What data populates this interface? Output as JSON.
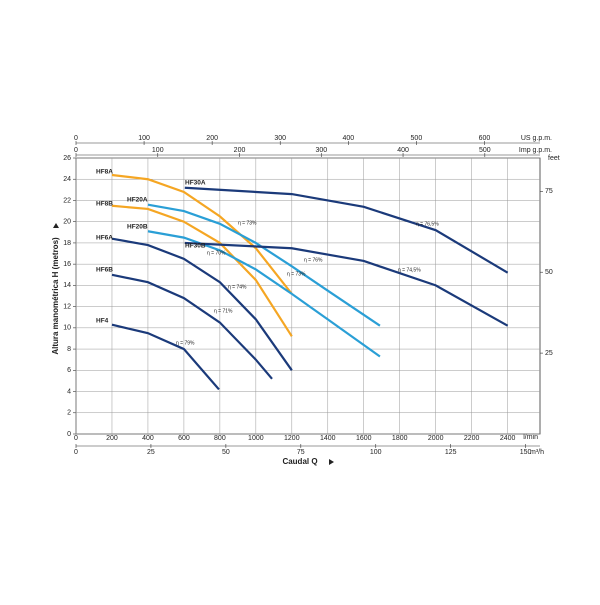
{
  "chart_data": {
    "type": "line",
    "xlabel": "Caudal Q",
    "xunit": "l/min",
    "xlim": [
      0,
      2580
    ],
    "xticks": [
      0,
      200,
      400,
      600,
      800,
      1000,
      1200,
      1400,
      1600,
      1800,
      2000,
      2200,
      2400
    ],
    "ylabel": "Altura manométrica H (metros)",
    "ylim": [
      0,
      26
    ],
    "yticks": [
      0,
      2,
      4,
      6,
      8,
      10,
      12,
      14,
      16,
      18,
      20,
      22,
      24,
      26
    ],
    "y2label": "feet",
    "y2lim": [
      0,
      85.3
    ],
    "y2ticks": [
      25,
      50,
      75
    ],
    "top_axes": [
      {
        "label": "US g.p.m.",
        "xlim": [
          0,
          681.6
        ],
        "xticks": [
          0,
          100,
          200,
          300,
          400,
          500,
          600
        ]
      },
      {
        "label": "Imp g.p.m.",
        "xlim": [
          0,
          567.5
        ],
        "xticks": [
          0,
          100,
          200,
          300,
          400,
          500
        ]
      }
    ],
    "bottom_axis2": {
      "label": "m³/h",
      "xlim": [
        0,
        154.8
      ],
      "xticks": [
        0,
        25,
        50,
        75,
        100,
        125,
        150
      ]
    },
    "grid": true,
    "series": [
      {
        "name": "HF8A",
        "color": "#f5a623",
        "x": [
          200,
          400,
          600,
          800,
          1000,
          1200
        ],
        "values": [
          24.4,
          24,
          22.8,
          20.5,
          17.5,
          13.2
        ]
      },
      {
        "name": "HF8B",
        "color": "#f5a623",
        "x": [
          200,
          400,
          600,
          800,
          1000,
          1200
        ],
        "values": [
          21.5,
          21.2,
          20,
          18,
          14.5,
          9.2
        ]
      },
      {
        "name": "HF20A",
        "color": "#2a9fd6",
        "x": [
          400,
          600,
          800,
          1000,
          1200,
          1400,
          1690
        ],
        "values": [
          21.6,
          21,
          19.8,
          18,
          15.8,
          13.5,
          10.2
        ]
      },
      {
        "name": "HF20B",
        "color": "#2a9fd6",
        "x": [
          400,
          600,
          800,
          1000,
          1200,
          1400,
          1690
        ],
        "values": [
          19.1,
          18.5,
          17.3,
          15.5,
          13.2,
          10.8,
          7.3
        ]
      },
      {
        "name": "HF30A",
        "color": "#1b3a7a",
        "x": [
          605,
          1200,
          1600,
          2000,
          2400
        ],
        "values": [
          23.2,
          22.6,
          21.4,
          19.2,
          15.2
        ]
      },
      {
        "name": "HF30B",
        "color": "#1b3a7a",
        "x": [
          605,
          1200,
          1600,
          2000,
          2400
        ],
        "values": [
          18,
          17.5,
          16.3,
          14,
          10.2
        ]
      },
      {
        "name": "HF6A",
        "color": "#1b3a7a",
        "x": [
          200,
          400,
          600,
          800,
          1000,
          1200
        ],
        "values": [
          18.4,
          17.8,
          16.5,
          14.3,
          10.8,
          6.0
        ]
      },
      {
        "name": "HF6B",
        "color": "#1b3a7a",
        "x": [
          200,
          400,
          600,
          800,
          1000,
          1090
        ],
        "values": [
          15.0,
          14.3,
          12.8,
          10.5,
          7.0,
          5.2
        ]
      },
      {
        "name": "HF4",
        "color": "#1b3a7a",
        "x": [
          200,
          400,
          600,
          795
        ],
        "values": [
          10.3,
          9.5,
          8,
          4.2
        ]
      }
    ],
    "annotations": [
      "η = 79%",
      "η = 71%",
      "η = 74%",
      "η = 70%",
      "η = 73%",
      "η = 73%",
      "η = 76%",
      "η = 74,5%",
      "η = 76,5%"
    ]
  }
}
